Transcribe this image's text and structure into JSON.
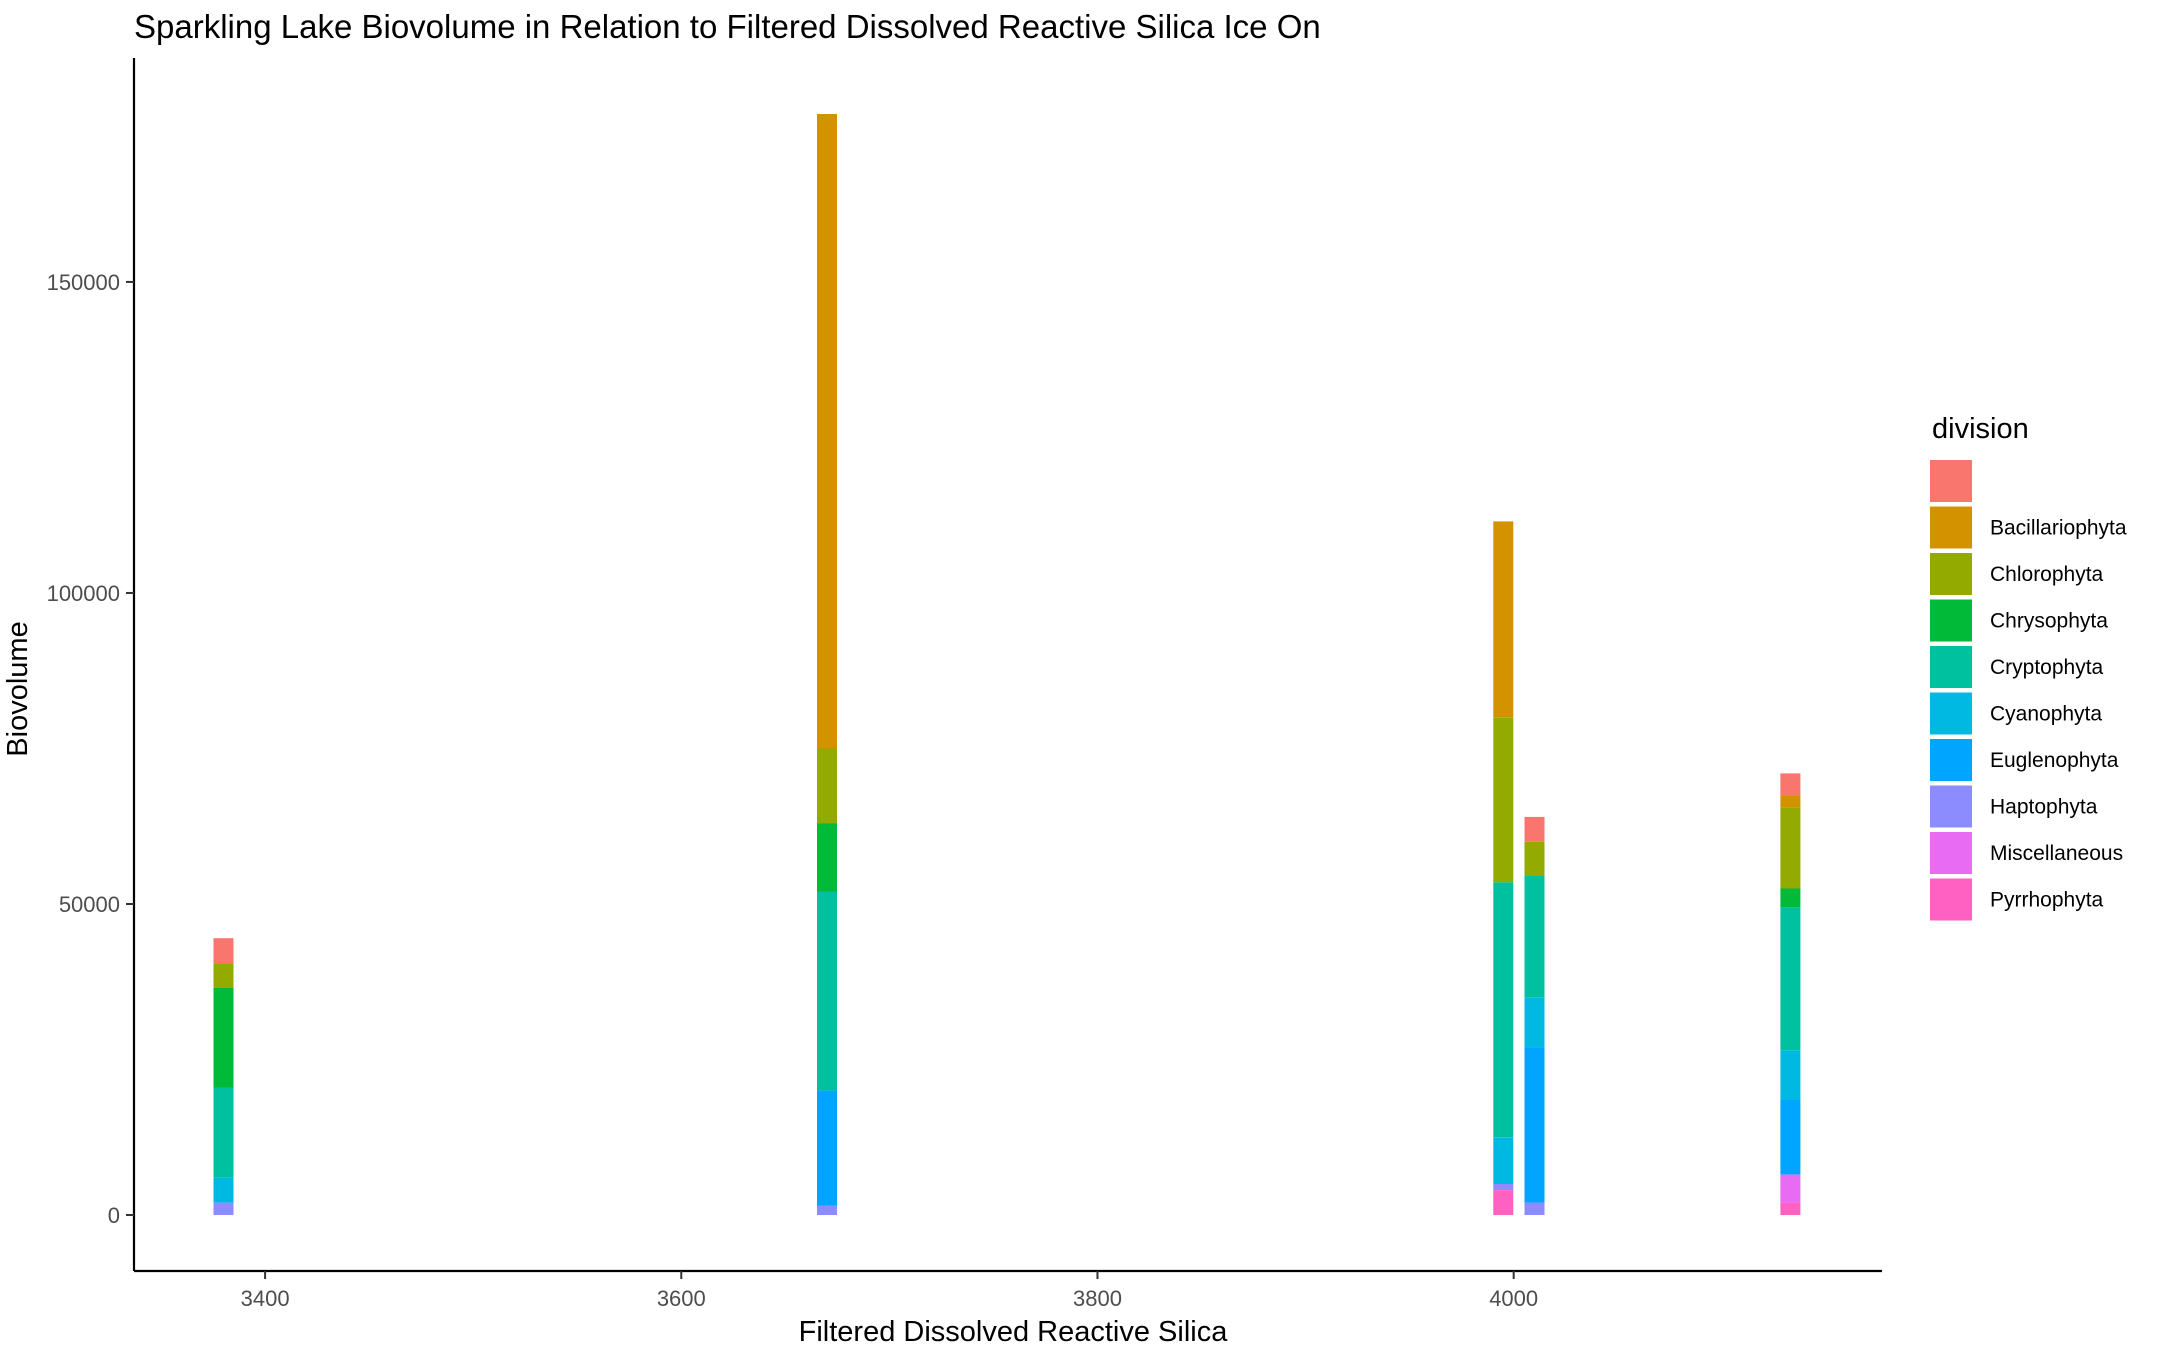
{
  "chart_data": {
    "type": "bar",
    "stacked": true,
    "title": "Sparkling Lake Biovolume in Relation to Filtered Dissolved Reactive Silica Ice On",
    "xlabel": "Filtered Dissolved Reactive Silica",
    "ylabel": "Biovolume",
    "xlim": [
      3337,
      4177
    ],
    "ylim": [
      -9000,
      186000
    ],
    "x_ticks": [
      3400,
      3600,
      3800,
      4000
    ],
    "y_ticks": [
      0,
      50000,
      100000,
      150000
    ],
    "grid": false,
    "legend": {
      "title": "division",
      "position": "right",
      "entries": [
        {
          "label": "",
          "color": "#F8766D"
        },
        {
          "label": "Bacillariophyta",
          "color": "#D39200"
        },
        {
          "label": "Chlorophyta",
          "color": "#93AA00"
        },
        {
          "label": "Chrysophyta",
          "color": "#00BA38"
        },
        {
          "label": "Cryptophyta",
          "color": "#00C19F"
        },
        {
          "label": "Cyanophyta",
          "color": "#00B9E3"
        },
        {
          "label": "Euglenophyta",
          "color": "#00A5FF"
        },
        {
          "label": "Haptophyta",
          "color": "#8C8CFF"
        },
        {
          "label": "Miscellaneous",
          "color": "#E76BF3"
        },
        {
          "label": "Pyrrhophyta",
          "color": "#FF61C3"
        }
      ]
    },
    "bars": [
      {
        "x": 3380,
        "segments": [
          {
            "division": "Haptophyta",
            "value": 2000
          },
          {
            "division": "Cyanophyta",
            "value": 4000
          },
          {
            "division": "Cryptophyta",
            "value": 14500
          },
          {
            "division": "Chrysophyta",
            "value": 16000
          },
          {
            "division": "Chlorophyta",
            "value": 4000
          },
          {
            "division": "",
            "value": 4000
          }
        ]
      },
      {
        "x": 3670,
        "segments": [
          {
            "division": "Haptophyta",
            "value": 1500
          },
          {
            "division": "Euglenophyta",
            "value": 18500
          },
          {
            "division": "Cryptophyta",
            "value": 32000
          },
          {
            "division": "Chrysophyta",
            "value": 11000
          },
          {
            "division": "Chlorophyta",
            "value": 12000
          },
          {
            "division": "Bacillariophyta",
            "value": 102000
          }
        ]
      },
      {
        "x": 3995,
        "segments": [
          {
            "division": "Pyrrhophyta",
            "value": 4000
          },
          {
            "division": "Haptophyta",
            "value": 1000
          },
          {
            "division": "Cyanophyta",
            "value": 7500
          },
          {
            "division": "Cryptophyta",
            "value": 41000
          },
          {
            "division": "Chlorophyta",
            "value": 26500
          },
          {
            "division": "Bacillariophyta",
            "value": 31500
          }
        ]
      },
      {
        "x": 4010,
        "segments": [
          {
            "division": "Haptophyta",
            "value": 2000
          },
          {
            "division": "Euglenophyta",
            "value": 25000
          },
          {
            "division": "Cyanophyta",
            "value": 8000
          },
          {
            "division": "Cryptophyta",
            "value": 19500
          },
          {
            "division": "Chlorophyta",
            "value": 5500
          },
          {
            "division": "",
            "value": 4000
          }
        ]
      },
      {
        "x": 4133,
        "segments": [
          {
            "division": "Pyrrhophyta",
            "value": 2000
          },
          {
            "division": "Miscellaneous",
            "value": 4500
          },
          {
            "division": "Euglenophyta",
            "value": 12000
          },
          {
            "division": "Cyanophyta",
            "value": 8000
          },
          {
            "division": "Cryptophyta",
            "value": 23000
          },
          {
            "division": "Chrysophyta",
            "value": 3000
          },
          {
            "division": "Chlorophyta",
            "value": 13000
          },
          {
            "division": "Bacillariophyta",
            "value": 2000
          },
          {
            "division": "",
            "value": 3500
          }
        ]
      }
    ]
  }
}
